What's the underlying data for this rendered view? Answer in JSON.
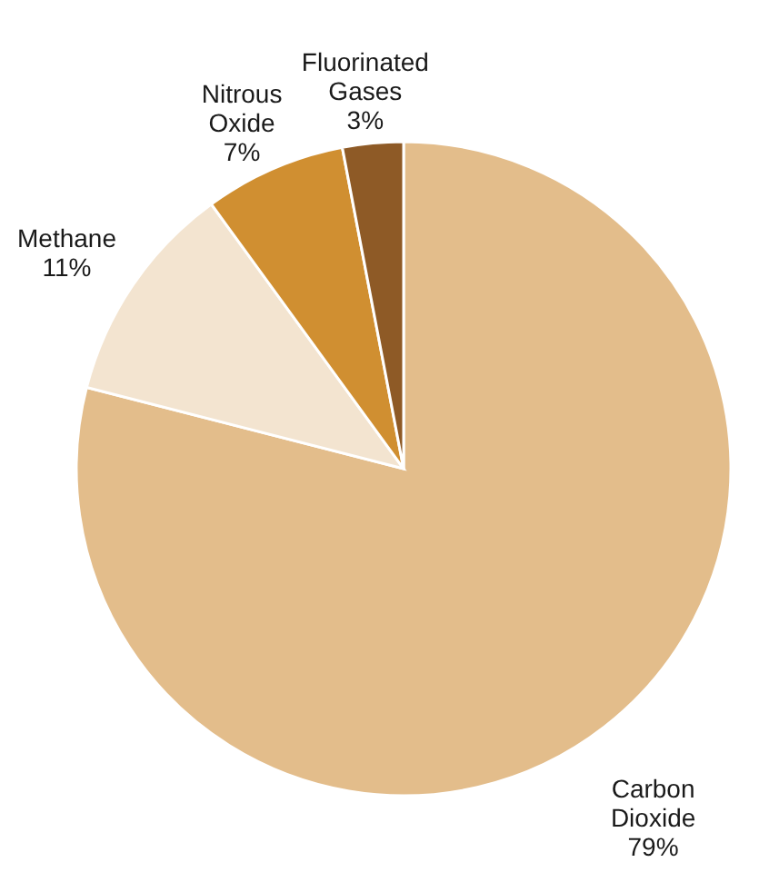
{
  "chart_data": {
    "type": "pie",
    "categories": [
      "Carbon Dioxide",
      "Methane",
      "Nitrous Oxide",
      "Fluorinated Gases"
    ],
    "values": [
      79,
      11,
      7,
      3
    ],
    "colors": [
      "#e3bd8b",
      "#f3e4d0",
      "#d08f31",
      "#8e5a26"
    ],
    "value_labels": [
      "79%",
      "11%",
      "7%",
      "3%"
    ]
  }
}
